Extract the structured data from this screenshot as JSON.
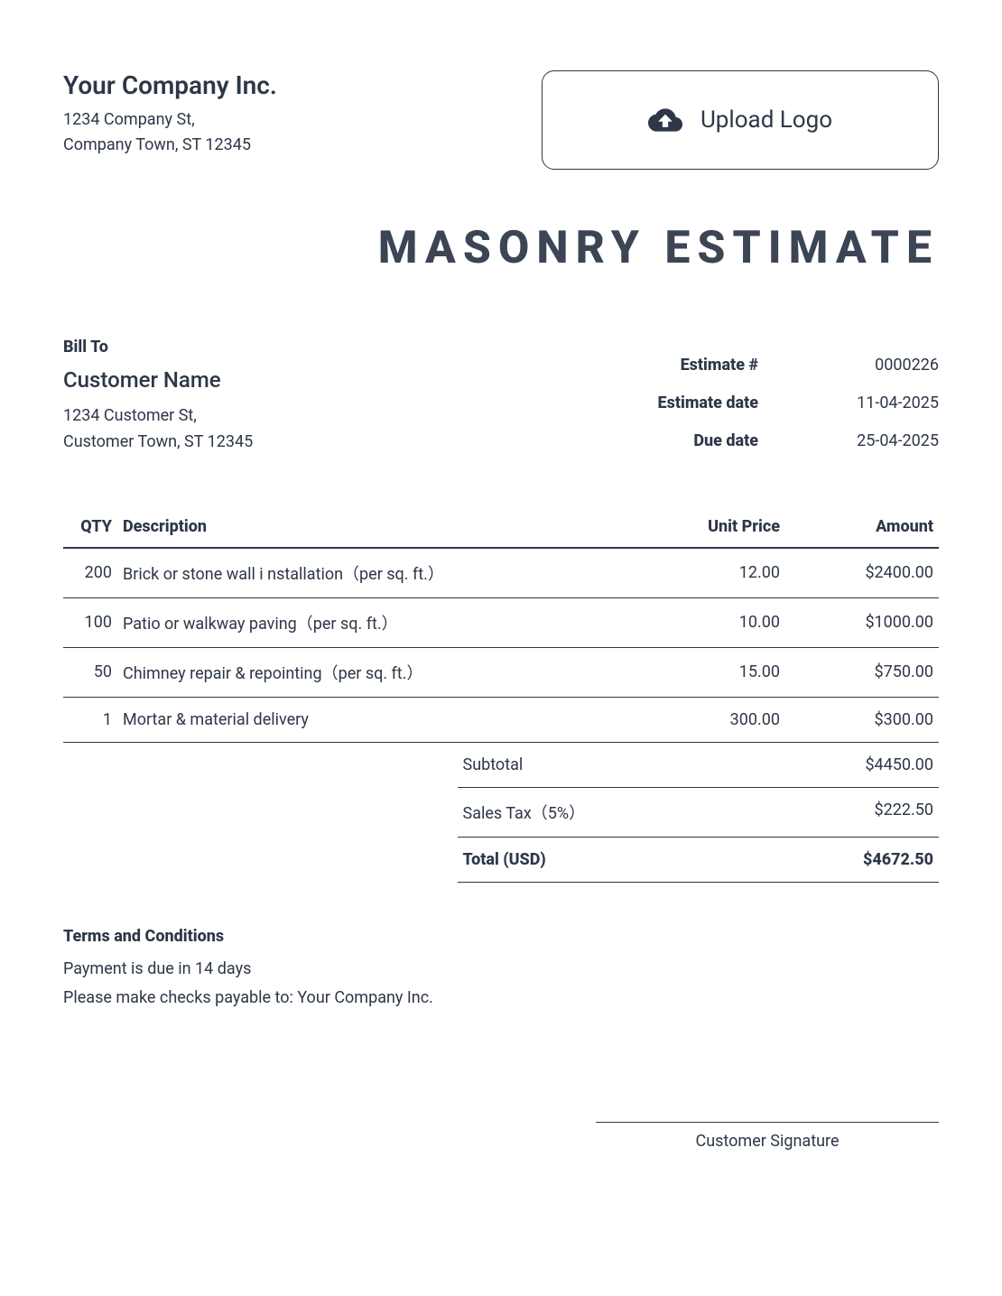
{
  "company": {
    "name": "Your Company Inc.",
    "address_line1": "1234 Company St,",
    "address_line2": "Company Town, ST 12345"
  },
  "upload": {
    "label": "Upload Logo"
  },
  "document_title": "MASONRY ESTIMATE",
  "bill_to": {
    "heading": "Bill To",
    "customer_name": "Customer Name",
    "address_line1": "1234 Customer St,",
    "address_line2": "Customer Town, ST 12345"
  },
  "meta": {
    "estimate_number_label": "Estimate #",
    "estimate_number": "0000226",
    "estimate_date_label": "Estimate date",
    "estimate_date": "11-04-2025",
    "due_date_label": "Due date",
    "due_date": "25-04-2025"
  },
  "table": {
    "headers": {
      "qty": "QTY",
      "description": "Description",
      "unit_price": "Unit Price",
      "amount": "Amount"
    },
    "rows": [
      {
        "qty": "200",
        "description": "Brick or stone wall i nstallation（per sq. ft.）",
        "unit_price": "12.00",
        "amount": "$2400.00"
      },
      {
        "qty": "100",
        "description": "Patio or walkway paving（per sq. ft.）",
        "unit_price": "10.00",
        "amount": "$1000.00"
      },
      {
        "qty": "50",
        "description": "Chimney repair & repointing（per sq. ft.）",
        "unit_price": "15.00",
        "amount": "$750.00"
      },
      {
        "qty": "1",
        "description": "Mortar & material delivery",
        "unit_price": "300.00",
        "amount": "$300.00"
      }
    ]
  },
  "totals": {
    "subtotal_label": "Subtotal",
    "subtotal": "$4450.00",
    "tax_label": "Sales Tax（5%）",
    "tax": "$222.50",
    "total_label": "Total (USD)",
    "total": "$4672.50"
  },
  "terms": {
    "heading": "Terms and Conditions",
    "line1": "Payment is due in 14 days",
    "line2": "Please make checks payable to: Your Company Inc."
  },
  "signature": {
    "label": "Customer Signature"
  }
}
